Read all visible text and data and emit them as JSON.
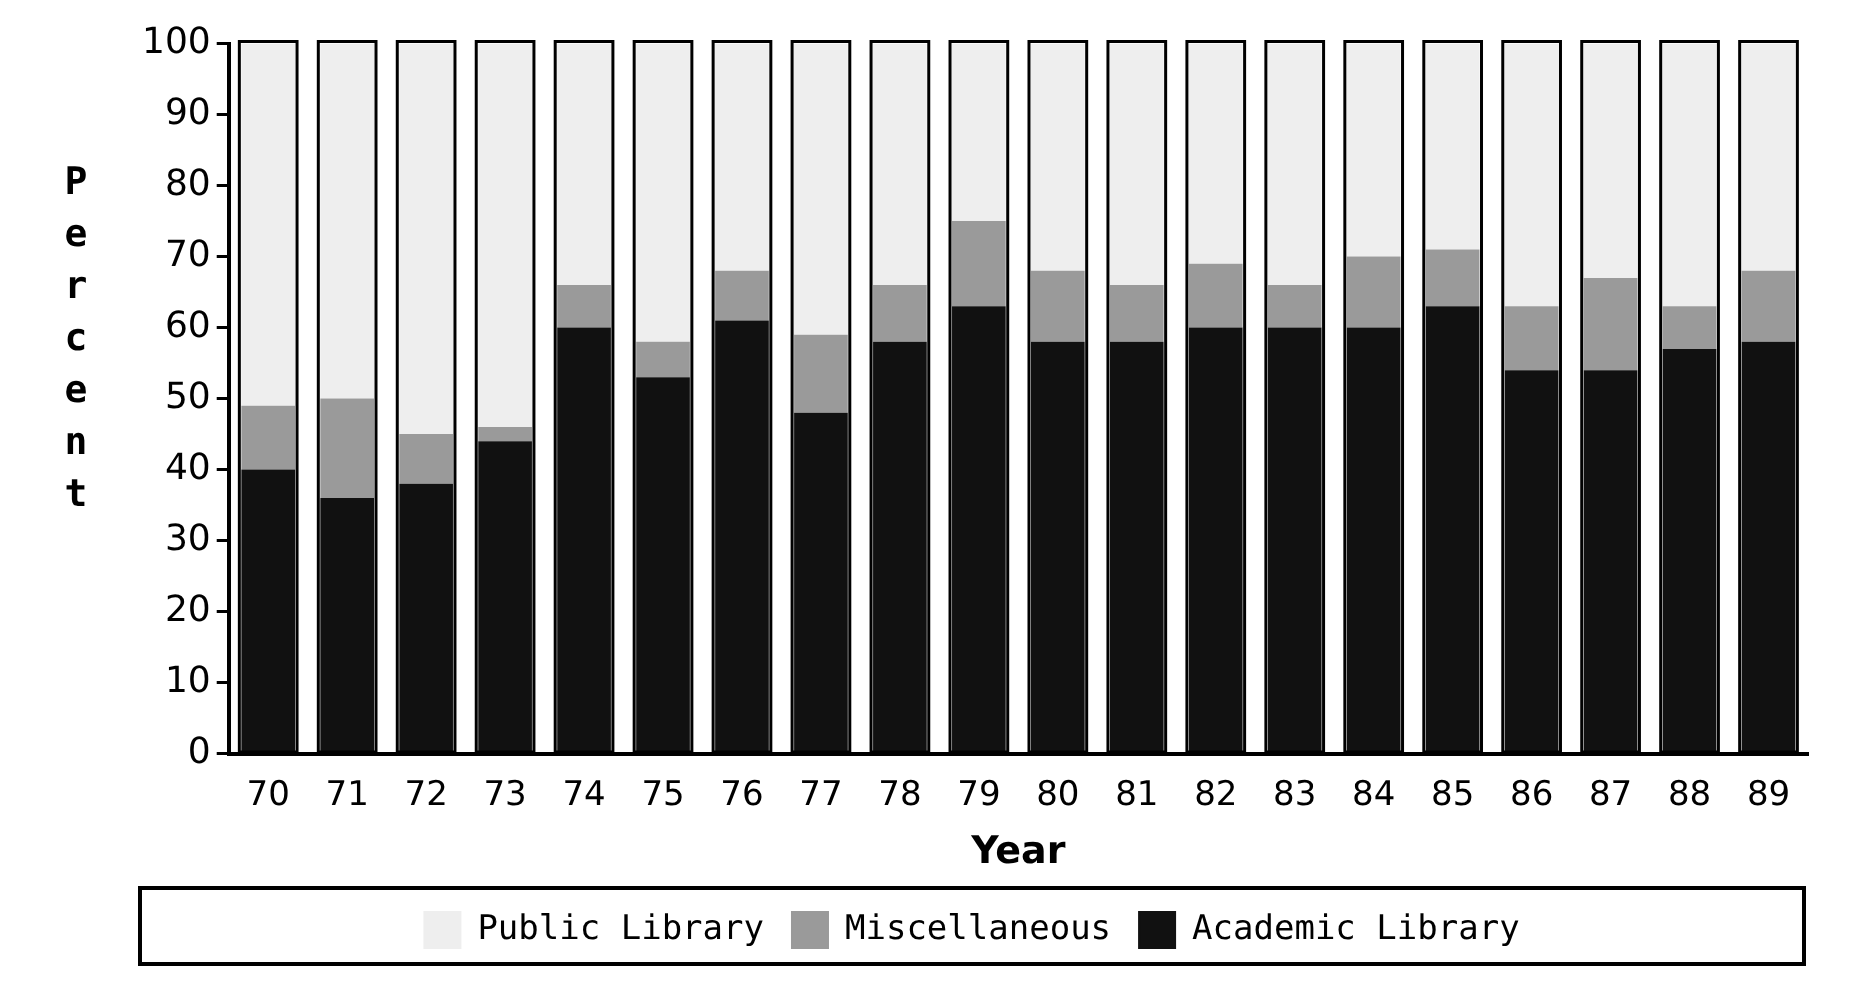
{
  "chart_data": {
    "type": "bar",
    "stacked": true,
    "xlabel": "Year",
    "ylabel": "Percent",
    "categories": [
      "70",
      "71",
      "72",
      "73",
      "74",
      "75",
      "76",
      "77",
      "78",
      "79",
      "80",
      "81",
      "82",
      "83",
      "84",
      "85",
      "86",
      "87",
      "88",
      "89"
    ],
    "series": [
      {
        "name": "Academic Library",
        "color": "#111111",
        "values": [
          40,
          36,
          38,
          44,
          60,
          53,
          61,
          48,
          58,
          63,
          58,
          58,
          60,
          60,
          60,
          63,
          54,
          54,
          57,
          58
        ]
      },
      {
        "name": "Miscellaneous",
        "color": "#9a9a9a",
        "values": [
          9,
          14,
          7,
          2,
          6,
          5,
          7,
          11,
          8,
          12,
          10,
          8,
          9,
          6,
          10,
          8,
          9,
          13,
          6,
          10
        ]
      },
      {
        "name": "Public Library",
        "color": "#eeeeee",
        "values": [
          51,
          50,
          55,
          54,
          34,
          42,
          32,
          41,
          34,
          25,
          32,
          34,
          31,
          34,
          30,
          29,
          37,
          33,
          37,
          32
        ]
      }
    ],
    "ylim": [
      0,
      100
    ],
    "yticks": [
      0,
      10,
      20,
      30,
      40,
      50,
      60,
      70,
      80,
      90,
      100
    ],
    "grid": false,
    "legend": "bottom"
  }
}
